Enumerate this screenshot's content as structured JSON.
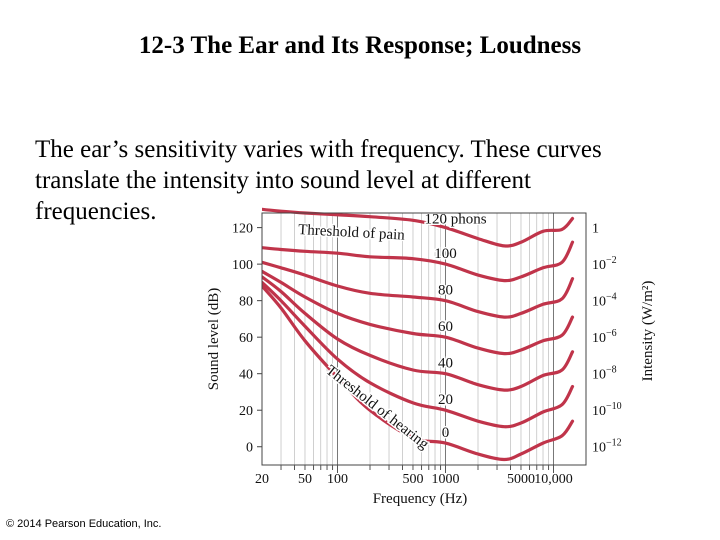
{
  "slide": {
    "title": "12-3 The Ear and Its Response; Loudness",
    "body_lines": [
      "The ear’s sensitivity varies with frequency. These curves",
      "translate the intensity into sound level at different",
      "frequencies."
    ],
    "copyright": "© 2014 Pearson Education, Inc."
  },
  "chart_data": {
    "type": "line",
    "xlabel": "Frequency (Hz)",
    "ylabel": "Sound level (dB)",
    "y2label": "Intensity (W/m²)",
    "xscale": "log",
    "xlim": [
      20,
      20000
    ],
    "ylim": [
      -10,
      128
    ],
    "x_ticks": [
      "20",
      "50",
      "100",
      "500",
      "1000",
      "5000",
      "10,000"
    ],
    "x_tick_values": [
      20,
      50,
      100,
      500,
      1000,
      5000,
      10000
    ],
    "y_ticks": [
      0,
      20,
      40,
      60,
      80,
      100,
      120
    ],
    "y2_ticks": [
      {
        "base": "1",
        "exp": ""
      },
      {
        "base": "10",
        "exp": "−2"
      },
      {
        "base": "10",
        "exp": "−4"
      },
      {
        "base": "10",
        "exp": "−6"
      },
      {
        "base": "10",
        "exp": "−8"
      },
      {
        "base": "10",
        "exp": "−10"
      },
      {
        "base": "10",
        "exp": "−12"
      }
    ],
    "annotations": {
      "pain": "Threshold of pain",
      "hearing": "Threshold of hearing"
    },
    "x": [
      20,
      30,
      50,
      100,
      200,
      500,
      1000,
      2000,
      3500,
      5000,
      8000,
      12000,
      15000
    ],
    "series": [
      {
        "name": "120 phons",
        "label": "120 phons",
        "values": [
          130,
          129,
          128,
          127,
          126,
          124,
          120,
          114,
          110,
          112,
          118,
          119,
          125
        ]
      },
      {
        "name": "100",
        "label": "100",
        "values": [
          109,
          108,
          107,
          106,
          104,
          103,
          100,
          94,
          91,
          93,
          98,
          101,
          112
        ]
      },
      {
        "name": "80",
        "label": "80",
        "values": [
          101,
          98,
          94,
          88,
          84,
          82,
          80,
          74,
          71,
          73,
          78,
          81,
          92
        ]
      },
      {
        "name": "60",
        "label": "60",
        "values": [
          96,
          90,
          82,
          73,
          67,
          62,
          60,
          54,
          51,
          53,
          58,
          61,
          71
        ]
      },
      {
        "name": "40",
        "label": "40",
        "values": [
          93,
          85,
          73,
          59,
          50,
          42,
          40,
          34,
          31,
          33,
          39,
          42,
          52
        ]
      },
      {
        "name": "20",
        "label": "20",
        "values": [
          90,
          80,
          66,
          48,
          35,
          24,
          20,
          14,
          11,
          13,
          19,
          23,
          33
        ]
      },
      {
        "name": "0",
        "label": "0",
        "values": [
          88,
          76,
          58,
          38,
          20,
          5,
          2,
          -4,
          -7,
          -4,
          2,
          6,
          14
        ]
      }
    ],
    "grid": true
  }
}
